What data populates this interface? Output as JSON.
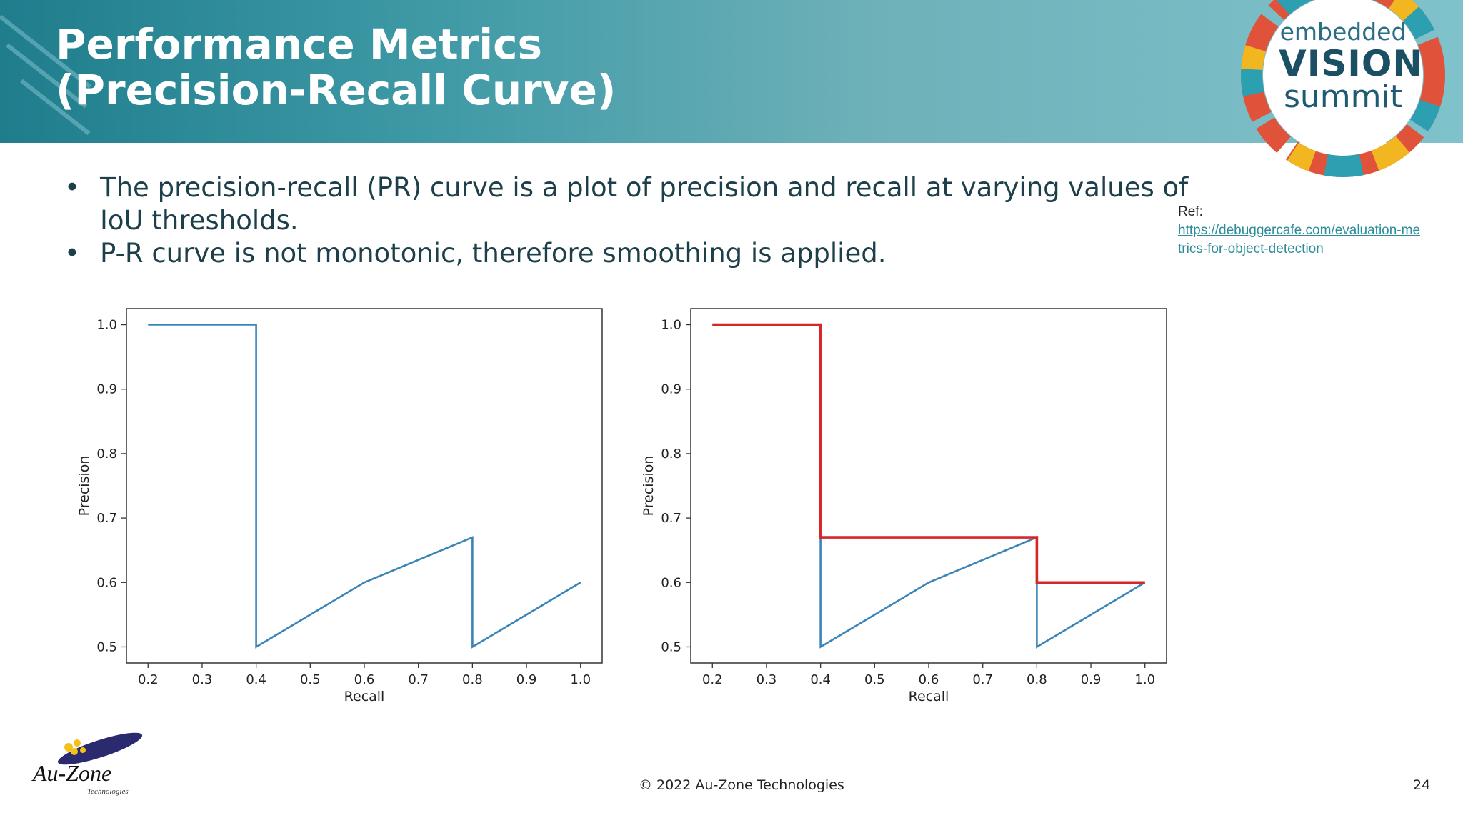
{
  "slide": {
    "title_lines": [
      "Performance Metrics",
      "(Precision-Recall Curve)"
    ],
    "bullets": [
      {
        "lines": [
          "The precision-recall (PR) curve is a plot of precision and recall at varying values of",
          "IoU thresholds."
        ]
      },
      {
        "lines": [
          "P-R curve is not monotonic, therefore smoothing is applied."
        ]
      }
    ],
    "bullet_symbol": "•",
    "ref": {
      "label": "Ref:",
      "link": "https://debuggercafe.com/evaluation-metrics-for-object-detection"
    },
    "logo": {
      "line1": "embedded",
      "line2": "VISION",
      "line3": "summit"
    },
    "footer": {
      "copyright": "© 2022 Au-Zone Technologies",
      "page": "24",
      "company_logo_text": "Au-Zone",
      "company_logo_sub": "Technologies"
    },
    "colors": {
      "header_start": "#1f7d8c",
      "header_end": "#7fc2cb",
      "pr_line": "#3a84b8",
      "smoothed_line": "#d62728",
      "text_dark": "#1c3f4a",
      "link": "#2a8d99"
    }
  },
  "chart_data": [
    {
      "type": "line",
      "title": "",
      "xlabel": "Recall",
      "ylabel": "Precision",
      "xlim": [
        0.16,
        1.04
      ],
      "ylim": [
        0.475,
        1.025
      ],
      "xticks": [
        "0.2",
        "0.3",
        "0.4",
        "0.5",
        "0.6",
        "0.7",
        "0.8",
        "0.9",
        "1.0"
      ],
      "yticks": [
        "0.5",
        "0.6",
        "0.7",
        "0.8",
        "0.9",
        "1.0"
      ],
      "grid": false,
      "series": [
        {
          "points": [
            [
              0.2,
              1.0
            ],
            [
              0.4,
              1.0
            ],
            [
              0.4,
              0.5
            ],
            [
              0.6,
              0.6
            ],
            [
              0.8,
              0.67
            ],
            [
              0.8,
              0.5
            ],
            [
              1.0,
              0.6
            ]
          ],
          "color": "#3a84b8"
        }
      ]
    },
    {
      "type": "line",
      "title": "",
      "xlabel": "Recall",
      "ylabel": "Precision",
      "xlim": [
        0.16,
        1.04
      ],
      "ylim": [
        0.475,
        1.025
      ],
      "xticks": [
        "0.2",
        "0.3",
        "0.4",
        "0.5",
        "0.6",
        "0.7",
        "0.8",
        "0.9",
        "1.0"
      ],
      "yticks": [
        "0.5",
        "0.6",
        "0.7",
        "0.8",
        "0.9",
        "1.0"
      ],
      "grid": false,
      "series": [
        {
          "points": [
            [
              0.2,
              1.0
            ],
            [
              0.4,
              1.0
            ],
            [
              0.4,
              0.5
            ],
            [
              0.6,
              0.6
            ],
            [
              0.8,
              0.67
            ],
            [
              0.8,
              0.5
            ],
            [
              1.0,
              0.6
            ]
          ],
          "color": "#3a84b8"
        },
        {
          "points": [
            [
              0.2,
              1.0
            ],
            [
              0.4,
              1.0
            ],
            [
              0.4,
              0.67
            ],
            [
              0.8,
              0.67
            ],
            [
              0.8,
              0.6
            ],
            [
              1.0,
              0.6
            ]
          ],
          "color": "#d62728"
        }
      ]
    }
  ]
}
